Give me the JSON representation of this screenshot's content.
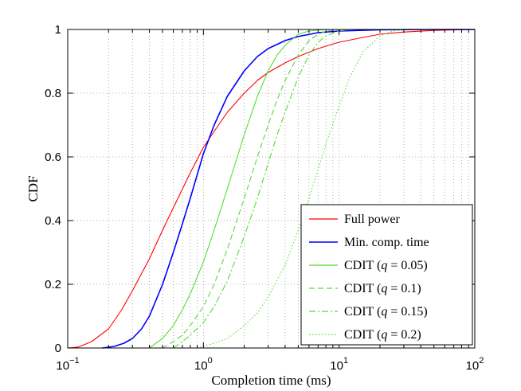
{
  "chart_data": {
    "type": "line",
    "title": "",
    "xlabel": "Completion time (ms)",
    "ylabel": "CDF",
    "xscale": "log",
    "xlim": [
      0.1,
      100
    ],
    "ylim": [
      0,
      1
    ],
    "grid": true,
    "legend_position": "bottom-right",
    "x_tick_labels": [
      {
        "base": "10",
        "exp": "−1"
      },
      {
        "base": "10",
        "exp": "0"
      },
      {
        "base": "10",
        "exp": "1"
      },
      {
        "base": "10",
        "exp": "2"
      }
    ],
    "y_tick_labels": [
      "0",
      "0.2",
      "0.4",
      "0.6",
      "0.8",
      "1"
    ],
    "series": [
      {
        "name": "Full power",
        "color": "#ff0000",
        "dash": "solid",
        "x": [
          0.1,
          0.12,
          0.15,
          0.2,
          0.25,
          0.3,
          0.4,
          0.5,
          0.6,
          0.8,
          1.0,
          1.2,
          1.5,
          2,
          2.5,
          3,
          4,
          5,
          7,
          10,
          15,
          20,
          30,
          50,
          100
        ],
        "y": [
          0.0,
          0.003,
          0.02,
          0.06,
          0.12,
          0.18,
          0.28,
          0.37,
          0.44,
          0.55,
          0.63,
          0.68,
          0.74,
          0.8,
          0.84,
          0.865,
          0.895,
          0.915,
          0.94,
          0.96,
          0.975,
          0.985,
          0.992,
          0.997,
          1.0
        ]
      },
      {
        "name": "Min. comp. time",
        "color": "#0000ff",
        "dash": "solid",
        "x": [
          0.18,
          0.22,
          0.26,
          0.3,
          0.35,
          0.4,
          0.5,
          0.6,
          0.7,
          0.8,
          1.0,
          1.2,
          1.5,
          2,
          2.5,
          3,
          4,
          5,
          7,
          10,
          20,
          50,
          100
        ],
        "y": [
          0.0,
          0.005,
          0.015,
          0.03,
          0.06,
          0.1,
          0.2,
          0.3,
          0.39,
          0.47,
          0.61,
          0.7,
          0.79,
          0.87,
          0.915,
          0.94,
          0.965,
          0.978,
          0.99,
          0.995,
          0.999,
          1.0,
          1.0
        ]
      },
      {
        "name": "CDIT (q = 0.05)",
        "label_prefix": "CDIT (",
        "label_var": "q",
        "label_suffix": " = 0.05)",
        "color": "#55dd33",
        "dash": "solid",
        "x": [
          0.4,
          0.5,
          0.6,
          0.7,
          0.8,
          1.0,
          1.2,
          1.5,
          2.0,
          2.5,
          3.0,
          3.5,
          4.0,
          5.0,
          6.0,
          8.0,
          10,
          100
        ],
        "y": [
          0.0,
          0.03,
          0.07,
          0.12,
          0.17,
          0.27,
          0.37,
          0.5,
          0.67,
          0.79,
          0.87,
          0.92,
          0.95,
          0.985,
          0.995,
          1.0,
          1.0,
          1.0
        ]
      },
      {
        "name": "CDIT (q = 0.1)",
        "label_prefix": "CDIT (",
        "label_var": "q",
        "label_suffix": " = 0.1)",
        "color": "#55dd33",
        "dash": "dashed",
        "x": [
          0.5,
          0.6,
          0.7,
          0.8,
          1.0,
          1.2,
          1.5,
          2.0,
          2.5,
          3.0,
          3.5,
          4.0,
          5.0,
          6.0,
          7.0,
          8.0,
          10,
          100
        ],
        "y": [
          0.0,
          0.02,
          0.04,
          0.07,
          0.13,
          0.2,
          0.31,
          0.47,
          0.6,
          0.7,
          0.78,
          0.84,
          0.92,
          0.965,
          0.985,
          0.995,
          1.0,
          1.0
        ]
      },
      {
        "name": "CDIT (q = 0.15)",
        "label_prefix": "CDIT (",
        "label_var": "q",
        "label_suffix": " = 0.15)",
        "color": "#55dd33",
        "dash": "dashdot",
        "x": [
          0.6,
          0.7,
          0.8,
          1.0,
          1.2,
          1.5,
          2.0,
          2.5,
          3.0,
          3.5,
          4.0,
          5.0,
          6.0,
          7.0,
          8.0,
          10,
          12,
          100
        ],
        "y": [
          0.0,
          0.02,
          0.04,
          0.08,
          0.13,
          0.21,
          0.35,
          0.47,
          0.58,
          0.67,
          0.74,
          0.85,
          0.92,
          0.96,
          0.98,
          0.995,
          1.0,
          1.0
        ]
      },
      {
        "name": "CDIT (q = 0.2)",
        "label_prefix": "CDIT (",
        "label_var": "q",
        "label_suffix": " = 0.2)",
        "color": "#55dd33",
        "dash": "dotted",
        "x": [
          0.9,
          1.0,
          1.2,
          1.5,
          2.0,
          2.5,
          3.0,
          4.0,
          5.0,
          6.0,
          7.0,
          8.0,
          10,
          12,
          15,
          20,
          25,
          30,
          100
        ],
        "y": [
          0.0,
          0.005,
          0.015,
          0.03,
          0.07,
          0.11,
          0.16,
          0.26,
          0.37,
          0.47,
          0.56,
          0.64,
          0.76,
          0.85,
          0.93,
          0.98,
          0.995,
          1.0,
          1.0
        ]
      }
    ]
  }
}
